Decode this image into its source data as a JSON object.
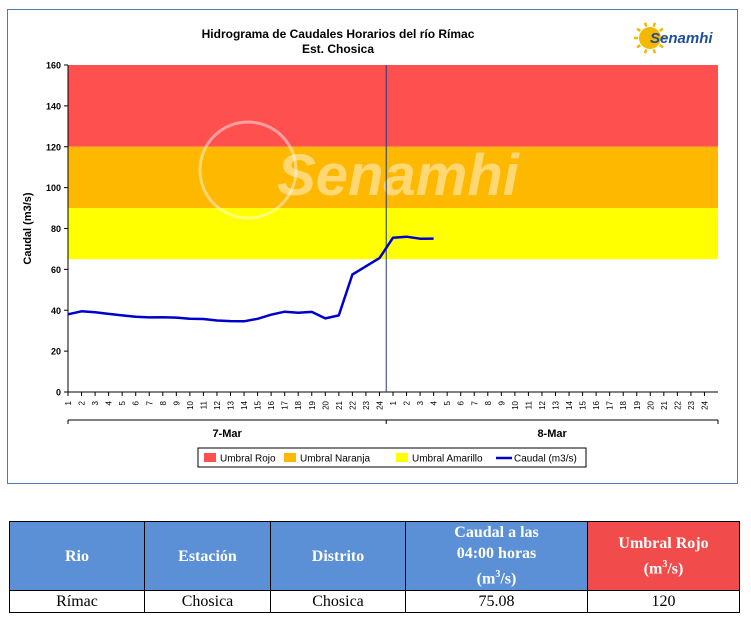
{
  "chart_data": {
    "type": "line",
    "title": "Hidrograma de Caudales Horarios del río Rímac",
    "subtitle": "Est. Chosica",
    "logo_text": "Senamhi",
    "watermark": "Senamhi",
    "ylabel": "Caudal  (m3/s)",
    "ylim": [
      0,
      160
    ],
    "yticks": [
      "0",
      "20",
      "40",
      "60",
      "80",
      "100",
      "120",
      "140",
      "160"
    ],
    "hour_ticks": [
      "1",
      "2",
      "3",
      "4",
      "5",
      "6",
      "7",
      "8",
      "9",
      "10",
      "11",
      "12",
      "13",
      "14",
      "15",
      "16",
      "17",
      "18",
      "19",
      "20",
      "21",
      "22",
      "23",
      "24"
    ],
    "day_labels": [
      "7-Mar",
      "8-Mar"
    ],
    "thresholds": [
      {
        "name": "Umbral Rojo",
        "from": 120,
        "to": 160,
        "color": "#ff5050"
      },
      {
        "name": "Umbral Naranja",
        "from": 90,
        "to": 120,
        "color": "#ffb800"
      },
      {
        "name": "Umbral Amarillo",
        "from": 65,
        "to": 90,
        "color": "#ffff00"
      }
    ],
    "series": [
      {
        "name": "Caudal (m3/s)",
        "color": "#0000cc",
        "x": [
          1,
          2,
          3,
          4,
          5,
          6,
          7,
          8,
          9,
          10,
          11,
          12,
          13,
          14,
          15,
          16,
          17,
          18,
          19,
          20,
          21,
          22,
          23,
          24,
          25,
          26,
          27,
          28
        ],
        "y": [
          38,
          39.5,
          39,
          38.2,
          37.5,
          36.8,
          36.5,
          36.6,
          36.4,
          35.8,
          35.7,
          35,
          34.7,
          34.6,
          35.8,
          37.8,
          39.3,
          38.8,
          39.2,
          36,
          37.5,
          57.5,
          61.5,
          65.5,
          75.5,
          76,
          75,
          75.08
        ]
      }
    ]
  },
  "legend": {
    "items": [
      {
        "label": "Umbral Rojo",
        "color": "#ff5050"
      },
      {
        "label": "Umbral Naranja",
        "color": "#ffb800"
      },
      {
        "label": "Umbral Amarillo",
        "color": "#ffff00"
      },
      {
        "label": "Caudal (m3/s)",
        "color": "#0000cc"
      }
    ]
  },
  "table": {
    "headers": {
      "rio": "Rio",
      "estacion": "Estación",
      "distrito": "Distrito",
      "caudal_line1": "Caudal a las",
      "caudal_line2": "04:00 horas",
      "caudal_unit_pre": "(m",
      "caudal_unit_sup": "3",
      "caudal_unit_post": "/s)",
      "umbral_line1": "Umbral Rojo",
      "umbral_unit_pre": "(m",
      "umbral_unit_sup": "3",
      "umbral_unit_post": "/s)"
    },
    "row": {
      "rio": "Rímac",
      "estacion": "Chosica",
      "distrito": "Chosica",
      "caudal": "75.08",
      "umbral": "120"
    }
  }
}
